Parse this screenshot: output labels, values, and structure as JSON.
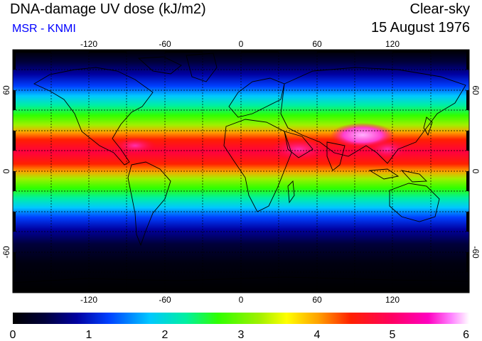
{
  "header": {
    "title": "DNA-damage UV dose (kJ/m2)",
    "subtitle": "MSR - KNMI",
    "condition": "Clear-sky",
    "date": "15 August 1976"
  },
  "colors": {
    "subtitle": "#0000ff",
    "scale": [
      "#000000",
      "#00003a",
      "#0000a0",
      "#0040ff",
      "#00c8ff",
      "#00f0a0",
      "#30ff00",
      "#a0f000",
      "#ffff00",
      "#ffa000",
      "#ff2000",
      "#ff0060",
      "#ff00c0",
      "#ff80ff",
      "#ffffff"
    ]
  },
  "map": {
    "lon_ticks": [
      "-120",
      "-60",
      "0",
      "60",
      "120"
    ],
    "lat_ticks_left": [
      "60",
      "0",
      "-60"
    ],
    "lat_ticks_right": [
      "60",
      "0",
      "-60"
    ],
    "lon_range": [
      -180,
      180
    ],
    "lat_range": [
      -90,
      90
    ]
  },
  "colorbar": {
    "ticks": [
      "0",
      "1",
      "2",
      "3",
      "4",
      "5",
      "6"
    ],
    "range": [
      0,
      6
    ]
  }
}
